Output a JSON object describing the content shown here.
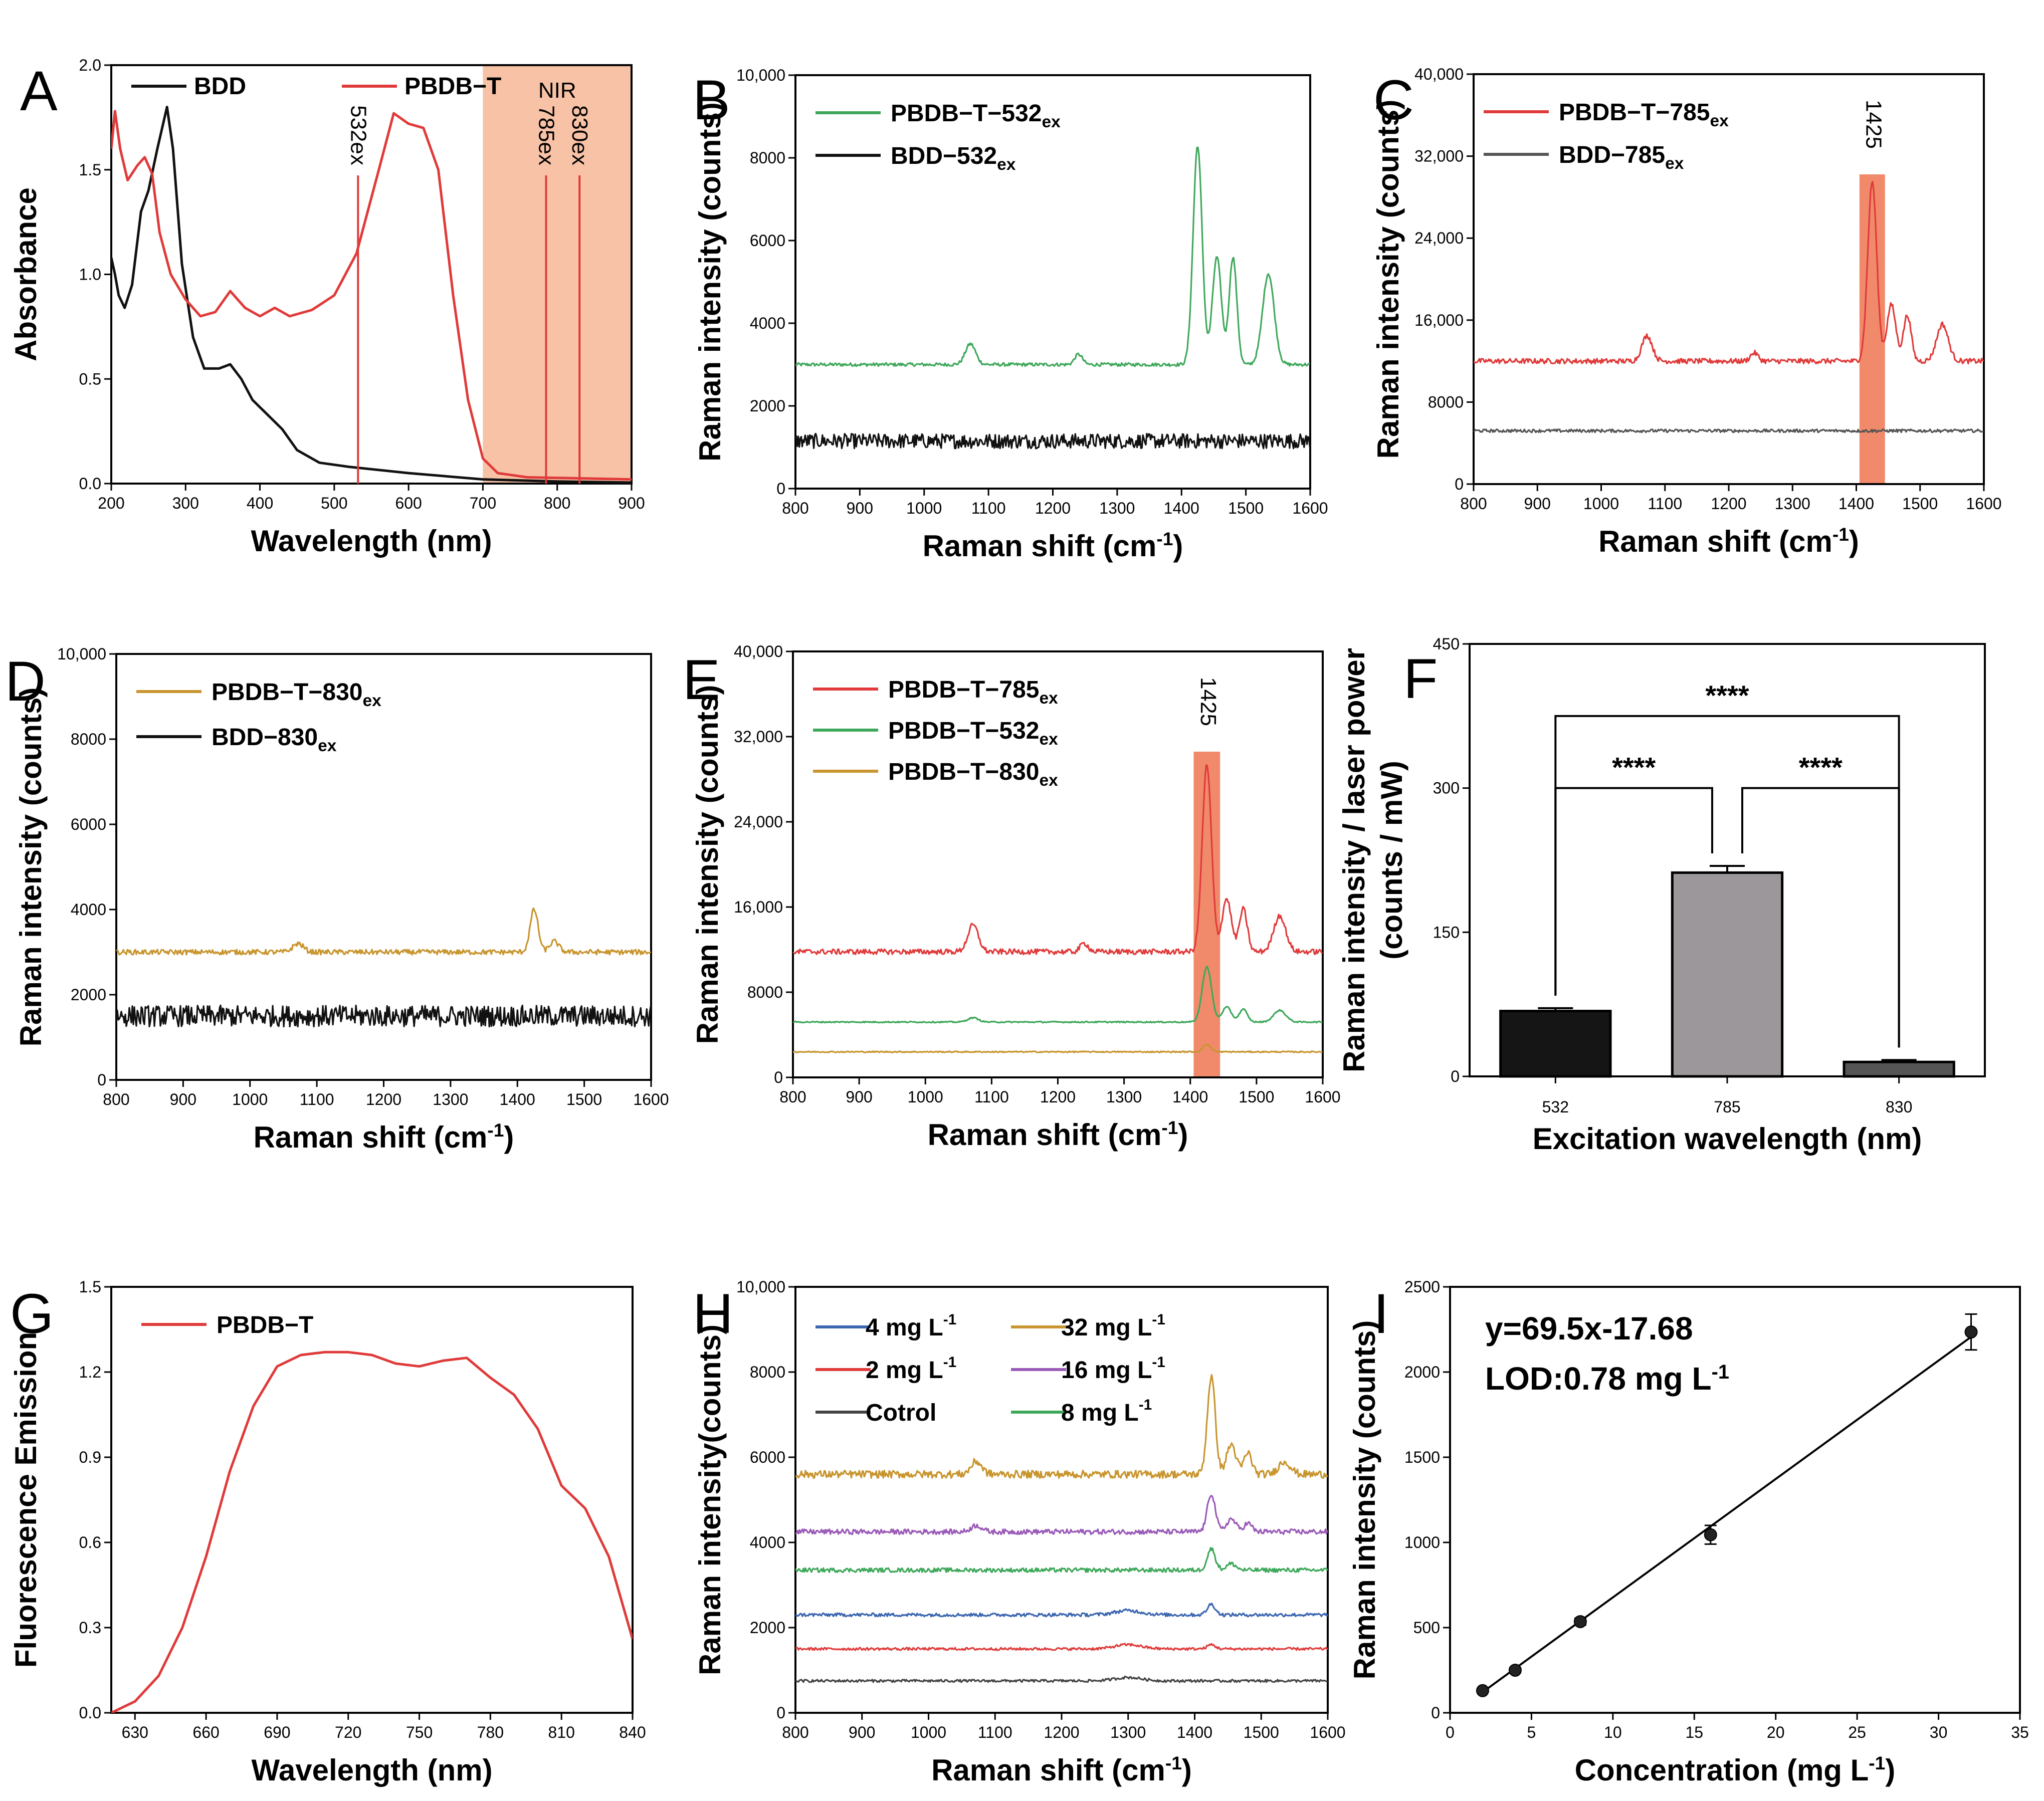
{
  "colors": {
    "red": "#e03a3a",
    "green": "#3ea85a",
    "black": "#111111",
    "gold": "#c8952e",
    "gray_line": "#555555",
    "blue": "#3b66b0",
    "purple": "#9a5ab8",
    "darkgray": "#444444",
    "shade": "#f7c2a6",
    "band": "#f08a6a"
  },
  "chart_data": [
    {
      "id": "A",
      "type": "line",
      "letter": "A",
      "xlabel": "Wavelength (nm)",
      "ylabel": "Absorbance",
      "xlim": [
        200,
        900
      ],
      "ylim": [
        0,
        2.0
      ],
      "xticks": [
        "200",
        "300",
        "400",
        "500",
        "600",
        "700",
        "800",
        "900"
      ],
      "yticks": [
        "0.0",
        "0.5",
        "1.0",
        "1.5",
        "2.0"
      ],
      "nir_label": "NIR",
      "laser_lines": [
        {
          "x": 532,
          "label": "532ex"
        },
        {
          "x": 785,
          "label": "785ex"
        },
        {
          "x": 830,
          "label": "830ex"
        }
      ],
      "nir_region": [
        700,
        900
      ],
      "series": [
        {
          "name": "BDD",
          "color": "black",
          "points": [
            [
              200,
              1.08
            ],
            [
              205,
              1.0
            ],
            [
              210,
              0.9
            ],
            [
              218,
              0.84
            ],
            [
              228,
              0.95
            ],
            [
              240,
              1.3
            ],
            [
              250,
              1.4
            ],
            [
              262,
              1.6
            ],
            [
              275,
              1.8
            ],
            [
              283,
              1.6
            ],
            [
              295,
              1.05
            ],
            [
              310,
              0.7
            ],
            [
              325,
              0.55
            ],
            [
              345,
              0.55
            ],
            [
              360,
              0.57
            ],
            [
              375,
              0.5
            ],
            [
              390,
              0.4
            ],
            [
              410,
              0.33
            ],
            [
              430,
              0.26
            ],
            [
              450,
              0.16
            ],
            [
              480,
              0.1
            ],
            [
              520,
              0.08
            ],
            [
              600,
              0.05
            ],
            [
              700,
              0.02
            ],
            [
              800,
              0.01
            ],
            [
              900,
              0.005
            ]
          ]
        },
        {
          "name": "PBDB−T",
          "color": "red",
          "points": [
            [
              200,
              1.6
            ],
            [
              205,
              1.78
            ],
            [
              212,
              1.6
            ],
            [
              222,
              1.45
            ],
            [
              235,
              1.52
            ],
            [
              245,
              1.56
            ],
            [
              255,
              1.48
            ],
            [
              265,
              1.2
            ],
            [
              280,
              1.0
            ],
            [
              300,
              0.88
            ],
            [
              320,
              0.8
            ],
            [
              340,
              0.82
            ],
            [
              360,
              0.92
            ],
            [
              380,
              0.84
            ],
            [
              400,
              0.8
            ],
            [
              420,
              0.84
            ],
            [
              440,
              0.8
            ],
            [
              470,
              0.83
            ],
            [
              500,
              0.9
            ],
            [
              530,
              1.1
            ],
            [
              560,
              1.5
            ],
            [
              580,
              1.77
            ],
            [
              600,
              1.72
            ],
            [
              620,
              1.7
            ],
            [
              640,
              1.5
            ],
            [
              660,
              0.9
            ],
            [
              680,
              0.4
            ],
            [
              700,
              0.12
            ],
            [
              720,
              0.05
            ],
            [
              760,
              0.03
            ],
            [
              900,
              0.02
            ]
          ]
        }
      ]
    },
    {
      "id": "B",
      "type": "line",
      "letter": "B",
      "xlabel": "Raman shift (cm",
      "xlabel_sup": "-1",
      "xlabel_end": ")",
      "ylabel": "Raman intensity (counts)",
      "xlim": [
        800,
        1600
      ],
      "ylim": [
        0,
        10000
      ],
      "xticks": [
        "800",
        "900",
        "1000",
        "1100",
        "1200",
        "1300",
        "1400",
        "1500",
        "1600"
      ],
      "yticks": [
        "0",
        "2000",
        "4000",
        "6000",
        "8000",
        "10,000"
      ],
      "series": [
        {
          "name": "PBDB−T−532",
          "sub": "ex",
          "color": "green",
          "baseline": 3000,
          "noise": 40,
          "peaks": [
            [
              1072,
              500,
              8
            ],
            [
              1240,
              250,
              6
            ],
            [
              1425,
              5300,
              7
            ],
            [
              1455,
              2600,
              7
            ],
            [
              1480,
              2600,
              6
            ],
            [
              1535,
              2200,
              9
            ]
          ]
        },
        {
          "name": "BDD−532",
          "sub": "ex",
          "color": "black",
          "baseline": 1150,
          "noise": 180,
          "peaks": []
        }
      ]
    },
    {
      "id": "C",
      "type": "line",
      "letter": "C",
      "xlabel": "Raman shift (cm",
      "xlabel_sup": "-1",
      "xlabel_end": ")",
      "ylabel": "Raman intensity (counts)",
      "xlim": [
        800,
        1600
      ],
      "ylim": [
        0,
        40000
      ],
      "xticks": [
        "800",
        "900",
        "1000",
        "1100",
        "1200",
        "1300",
        "1400",
        "1500",
        "1600"
      ],
      "yticks": [
        "0",
        "8000",
        "16,000",
        "24,000",
        "32,000",
        "40,000"
      ],
      "band": [
        1405,
        1445
      ],
      "band_label": "1425",
      "series": [
        {
          "name": "PBDB−T−785",
          "sub": "ex",
          "color": "red",
          "baseline": 12000,
          "noise": 250,
          "peaks": [
            [
              1072,
              2500,
              8
            ],
            [
              1240,
              800,
              6
            ],
            [
              1425,
              17500,
              7
            ],
            [
              1455,
              5500,
              7
            ],
            [
              1480,
              4500,
              6
            ],
            [
              1535,
              3600,
              9
            ]
          ]
        },
        {
          "name": "BDD−785",
          "sub": "ex",
          "color": "gray_line",
          "baseline": 5200,
          "noise": 150,
          "peaks": []
        }
      ]
    },
    {
      "id": "D",
      "type": "line",
      "letter": "D",
      "xlabel": "Raman shift (cm",
      "xlabel_sup": "-1",
      "xlabel_end": ")",
      "ylabel": "Raman intensity (counts)",
      "xlim": [
        800,
        1600
      ],
      "ylim": [
        0,
        10000
      ],
      "xticks": [
        "800",
        "900",
        "1000",
        "1100",
        "1200",
        "1300",
        "1400",
        "1500",
        "1600"
      ],
      "yticks": [
        "0",
        "2000",
        "4000",
        "6000",
        "8000",
        "10,000"
      ],
      "series": [
        {
          "name": "PBDB−T−830",
          "sub": "ex",
          "color": "gold",
          "baseline": 3000,
          "noise": 60,
          "peaks": [
            [
              1072,
              200,
              8
            ],
            [
              1425,
              1000,
              6
            ],
            [
              1455,
              250,
              7
            ]
          ]
        },
        {
          "name": "BDD−830",
          "sub": "ex",
          "color": "black",
          "baseline": 1500,
          "noise": 250,
          "peaks": []
        }
      ]
    },
    {
      "id": "E",
      "type": "line",
      "letter": "E",
      "xlabel": "Raman shift (cm",
      "xlabel_sup": "-1",
      "xlabel_end": ")",
      "ylabel": "Raman intensity (counts)",
      "xlim": [
        800,
        1600
      ],
      "ylim": [
        0,
        40000
      ],
      "xticks": [
        "800",
        "900",
        "1000",
        "1100",
        "1200",
        "1300",
        "1400",
        "1500",
        "1600"
      ],
      "yticks": [
        "0",
        "8000",
        "16,000",
        "24,000",
        "32,000",
        "40,000"
      ],
      "band": [
        1405,
        1445
      ],
      "band_label": "1425",
      "series": [
        {
          "name": "PBDB−T−785",
          "sub": "ex",
          "color": "red",
          "baseline": 11800,
          "noise": 250,
          "peaks": [
            [
              1072,
              2500,
              8
            ],
            [
              1240,
              800,
              6
            ],
            [
              1425,
              17500,
              7
            ],
            [
              1455,
              5000,
              7
            ],
            [
              1480,
              4000,
              6
            ],
            [
              1535,
              3400,
              9
            ]
          ]
        },
        {
          "name": "PBDB−T−532",
          "sub": "ex",
          "color": "green",
          "baseline": 5200,
          "noise": 60,
          "peaks": [
            [
              1072,
              400,
              8
            ],
            [
              1425,
              5200,
              7
            ],
            [
              1455,
              1400,
              7
            ],
            [
              1480,
              1200,
              6
            ],
            [
              1535,
              1100,
              9
            ]
          ]
        },
        {
          "name": "PBDB−T−830",
          "sub": "ex",
          "color": "gold",
          "baseline": 2400,
          "noise": 60,
          "peaks": [
            [
              1425,
              700,
              6
            ]
          ]
        }
      ]
    },
    {
      "id": "F",
      "type": "bar",
      "letter": "F",
      "xlabel": "Excitation wavelength (nm)",
      "ylabel": "Raman intensity / laser power",
      "ylabel2": "(counts / mW)",
      "ylim": [
        0,
        450
      ],
      "yticks": [
        "0",
        "150",
        "300",
        "450"
      ],
      "categories": [
        "532",
        "785",
        "830"
      ],
      "values": [
        68,
        212,
        15
      ],
      "errors": [
        3,
        7,
        2
      ],
      "bar_colors": [
        "#151515",
        "#9b979b",
        "#555555"
      ],
      "significance": [
        {
          "from": 0,
          "to": 1,
          "label": "****"
        },
        {
          "from": 1,
          "to": 2,
          "label": "****"
        },
        {
          "from": 0,
          "to": 2,
          "label": "****"
        }
      ]
    },
    {
      "id": "G",
      "type": "line",
      "letter": "G",
      "xlabel": "Wavelength (nm)",
      "ylabel": "Fluorescence Emission",
      "xlim": [
        620,
        840
      ],
      "ylim": [
        0,
        1.5
      ],
      "xticks": [
        "630",
        "660",
        "690",
        "720",
        "750",
        "780",
        "810",
        "840"
      ],
      "yticks": [
        "0.0",
        "0.3",
        "0.6",
        "0.9",
        "1.2",
        "1.5"
      ],
      "series": [
        {
          "name": "PBDB−T",
          "color": "red",
          "points": [
            [
              620,
              0.0
            ],
            [
              630,
              0.04
            ],
            [
              640,
              0.13
            ],
            [
              650,
              0.3
            ],
            [
              660,
              0.55
            ],
            [
              670,
              0.85
            ],
            [
              680,
              1.08
            ],
            [
              690,
              1.22
            ],
            [
              700,
              1.26
            ],
            [
              710,
              1.27
            ],
            [
              720,
              1.27
            ],
            [
              730,
              1.26
            ],
            [
              740,
              1.23
            ],
            [
              750,
              1.22
            ],
            [
              760,
              1.24
            ],
            [
              770,
              1.25
            ],
            [
              780,
              1.18
            ],
            [
              790,
              1.12
            ],
            [
              800,
              1.0
            ],
            [
              810,
              0.8
            ],
            [
              820,
              0.72
            ],
            [
              830,
              0.55
            ],
            [
              840,
              0.26
            ]
          ]
        }
      ]
    },
    {
      "id": "H",
      "type": "line",
      "letter": "H",
      "xlabel": "Raman shift (cm",
      "xlabel_sup": "-1",
      "xlabel_end": ")",
      "ylabel": "Raman intensity(counts)",
      "xlim": [
        800,
        1600
      ],
      "ylim": [
        0,
        10000
      ],
      "xticks": [
        "800",
        "900",
        "1000",
        "1100",
        "1200",
        "1300",
        "1400",
        "1500",
        "1600"
      ],
      "yticks": [
        "0",
        "2000",
        "4000",
        "6000",
        "8000",
        "10,000"
      ],
      "legend_left": [
        {
          "label": "4  mg L",
          "sup": "-1",
          "color": "blue"
        },
        {
          "label": "2  mg L",
          "sup": "-1",
          "color": "red"
        },
        {
          "label": "Cotrol",
          "sup": "",
          "color": "darkgray"
        }
      ],
      "legend_right": [
        {
          "label": "32  mg L",
          "sup": "-1",
          "color": "gold"
        },
        {
          "label": "16  mg L",
          "sup": "-1",
          "color": "purple"
        },
        {
          "label": "8    mg L",
          "sup": "-1",
          "color": "green"
        }
      ],
      "series": [
        {
          "name": "32 mg L-1",
          "color": "gold",
          "baseline": 5600,
          "noise": 90,
          "peaks": [
            [
              1072,
              300,
              8
            ],
            [
              1425,
              2300,
              6
            ],
            [
              1455,
              700,
              7
            ],
            [
              1480,
              500,
              6
            ],
            [
              1535,
              300,
              9
            ]
          ]
        },
        {
          "name": "16 mg L-1",
          "color": "purple",
          "baseline": 4250,
          "noise": 60,
          "peaks": [
            [
              1072,
              150,
              8
            ],
            [
              1425,
              900,
              6
            ],
            [
              1455,
              300,
              7
            ],
            [
              1480,
              200,
              6
            ]
          ]
        },
        {
          "name": "8 mg L-1",
          "color": "green",
          "baseline": 3350,
          "noise": 50,
          "peaks": [
            [
              1425,
              500,
              6
            ],
            [
              1455,
              150,
              7
            ]
          ]
        },
        {
          "name": "4 mg L-1",
          "color": "blue",
          "baseline": 2300,
          "noise": 40,
          "peaks": [
            [
              1300,
              100,
              20
            ],
            [
              1425,
              250,
              6
            ]
          ]
        },
        {
          "name": "2 mg L-1",
          "color": "red",
          "baseline": 1500,
          "noise": 30,
          "peaks": [
            [
              1300,
              100,
              20
            ],
            [
              1425,
              100,
              6
            ]
          ]
        },
        {
          "name": "Cotrol",
          "color": "darkgray",
          "baseline": 750,
          "noise": 30,
          "peaks": [
            [
              1300,
              80,
              20
            ]
          ]
        }
      ]
    },
    {
      "id": "I",
      "type": "scatter",
      "letter": "I",
      "xlabel": "Concentration (mg L",
      "xlabel_sup": "-1",
      "xlabel_end": ")",
      "ylabel": "Raman intensity (counts)",
      "xlim": [
        0,
        35
      ],
      "ylim": [
        0,
        2500
      ],
      "xticks": [
        "0",
        "5",
        "10",
        "15",
        "20",
        "25",
        "30",
        "35"
      ],
      "yticks": [
        "0",
        "500",
        "1000",
        "1500",
        "2000",
        "2500"
      ],
      "equation": "y=69.5x-17.68",
      "lod": "LOD:0.78 mg L",
      "lod_sup": "-1",
      "fit": {
        "slope": 69.5,
        "intercept": -17.68
      },
      "points": [
        [
          2,
          130,
          10
        ],
        [
          4,
          250,
          15
        ],
        [
          8,
          535,
          20
        ],
        [
          16,
          1045,
          55
        ],
        [
          32,
          2235,
          105
        ]
      ]
    }
  ]
}
